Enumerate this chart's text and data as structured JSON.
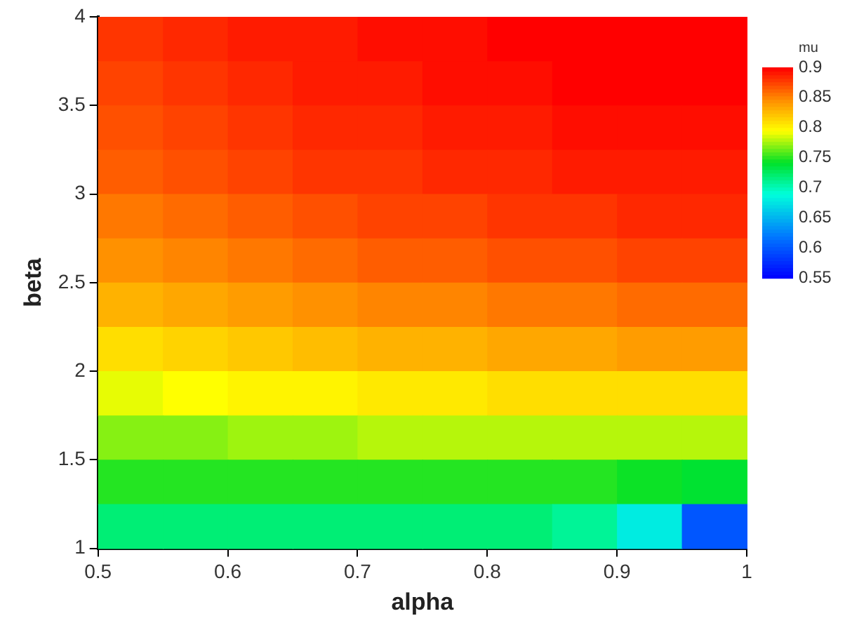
{
  "chart_data": {
    "type": "heatmap",
    "xlabel": "alpha",
    "ylabel": "beta",
    "clabel": "mu",
    "x": [
      0.525,
      0.575,
      0.625,
      0.675,
      0.725,
      0.775,
      0.825,
      0.875,
      0.925,
      0.975
    ],
    "y": [
      3.875,
      3.625,
      3.375,
      3.125,
      2.875,
      2.625,
      2.375,
      2.125,
      1.875,
      1.625,
      1.375,
      1.125
    ],
    "xlim": [
      0.5,
      1
    ],
    "xticks": [
      0.5,
      0.6,
      0.7,
      0.8,
      0.9,
      1
    ],
    "ylim": [
      1,
      4
    ],
    "yticks": [
      1,
      1.5,
      2,
      2.5,
      3,
      3.5,
      4
    ],
    "clim": [
      0.55,
      0.9
    ],
    "cticks": [
      0.55,
      0.6,
      0.65,
      0.7,
      0.75,
      0.8,
      0.85,
      0.9
    ],
    "cells": [
      [
        0.88,
        0.885,
        0.89,
        0.89,
        0.895,
        0.895,
        0.9,
        0.9,
        0.9,
        0.9
      ],
      [
        0.875,
        0.88,
        0.885,
        0.89,
        0.89,
        0.895,
        0.895,
        0.9,
        0.9,
        0.9
      ],
      [
        0.87,
        0.875,
        0.88,
        0.885,
        0.885,
        0.89,
        0.89,
        0.895,
        0.895,
        0.895
      ],
      [
        0.865,
        0.87,
        0.875,
        0.88,
        0.88,
        0.885,
        0.885,
        0.89,
        0.89,
        0.89
      ],
      [
        0.855,
        0.86,
        0.865,
        0.87,
        0.875,
        0.875,
        0.88,
        0.88,
        0.885,
        0.885
      ],
      [
        0.845,
        0.85,
        0.855,
        0.86,
        0.865,
        0.865,
        0.87,
        0.87,
        0.875,
        0.875
      ],
      [
        0.83,
        0.835,
        0.84,
        0.845,
        0.85,
        0.85,
        0.855,
        0.855,
        0.86,
        0.86
      ],
      [
        0.81,
        0.815,
        0.82,
        0.825,
        0.83,
        0.83,
        0.835,
        0.835,
        0.84,
        0.84
      ],
      [
        0.79,
        0.795,
        0.8,
        0.8,
        0.805,
        0.805,
        0.81,
        0.81,
        0.81,
        0.81
      ],
      [
        0.77,
        0.77,
        0.775,
        0.775,
        0.78,
        0.78,
        0.78,
        0.78,
        0.78,
        0.78
      ],
      [
        0.75,
        0.75,
        0.75,
        0.75,
        0.75,
        0.75,
        0.75,
        0.75,
        0.745,
        0.74
      ],
      [
        0.72,
        0.72,
        0.72,
        0.72,
        0.72,
        0.72,
        0.72,
        0.71,
        0.68,
        0.6
      ]
    ]
  }
}
